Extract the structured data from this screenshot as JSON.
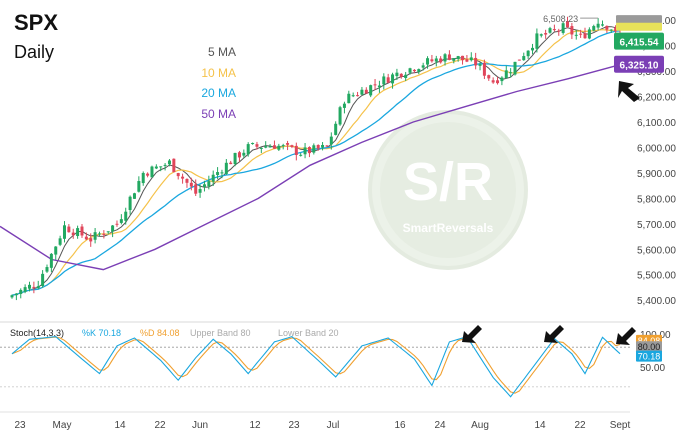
{
  "header": {
    "symbol": "SPX",
    "timeframe": "Daily"
  },
  "legend": [
    {
      "label": "5 MA",
      "color": "#555555"
    },
    {
      "label": "10 MA",
      "color": "#f5c24a"
    },
    {
      "label": "20 MA",
      "color": "#1aa7df"
    },
    {
      "label": "50 MA",
      "color": "#7b3fb5"
    }
  ],
  "watermark": {
    "mark": "S/R",
    "text": "SmartReversals"
  },
  "colors": {
    "up": "#22a861",
    "down": "#e0455a",
    "ma5": "#555555",
    "ma10": "#f5c24a",
    "ma20": "#1aa7df",
    "ma50": "#7b3fb5",
    "stoch_k": "#1aa7df",
    "stoch_d": "#f0a030"
  },
  "price_axis": {
    "ticks": [
      "6,500.00",
      "6,400.00",
      "6,300.00",
      "6,200.00",
      "6,100.00",
      "6,000.00",
      "5,900.00",
      "5,800.00",
      "5,700.00",
      "5,600.00",
      "5,500.00",
      "5,400.00"
    ]
  },
  "price_labels": {
    "high": "6,508.23",
    "last": {
      "text": "6,415.54",
      "color": "#22a861"
    },
    "ma50": {
      "text": "6,325.10",
      "color": "#7b3fb5"
    }
  },
  "x_axis": {
    "labels": [
      "23",
      "May",
      "14",
      "22",
      "Jun",
      "12",
      "23",
      "Jul",
      "16",
      "24",
      "Aug",
      "14",
      "22",
      "Sept"
    ]
  },
  "stoch": {
    "title": "Stoch(14,3,3)",
    "k_label": "%K 70.18",
    "d_label": "%D 84.08",
    "upper_band": "Upper Band 80",
    "lower_band": "Lower Band 20",
    "axis_ticks": [
      "100.00",
      "50.00"
    ],
    "value_tags": [
      {
        "text": "84.08",
        "color": "#f0a030"
      },
      {
        "text": "80.00",
        "color": "#9a9a9a"
      },
      {
        "text": "70.18",
        "color": "#1aa7df"
      }
    ]
  },
  "chart_data": [
    {
      "type": "candlestick",
      "title": "SPX Daily",
      "series": [
        {
          "name": "5 MA"
        },
        {
          "name": "10 MA"
        },
        {
          "name": "20 MA"
        },
        {
          "name": "50 MA"
        }
      ],
      "ylim": [
        5330,
        6540
      ],
      "x_labels": [
        "23",
        "May",
        "14",
        "22",
        "Jun",
        "12",
        "23",
        "Jul",
        "16",
        "24",
        "Aug",
        "14",
        "22",
        "Sept"
      ],
      "close_approx": [
        5470,
        5560,
        5660,
        5680,
        5720,
        5790,
        5900,
        5950,
        5930,
        5970,
        6000,
        6030,
        6000,
        5990,
        6090,
        6180,
        6230,
        6270,
        6280,
        6320,
        6360,
        6390,
        6330,
        6280,
        6380,
        6430,
        6460,
        6490,
        6410,
        6415
      ],
      "ma50_approx": [
        5690,
        5560,
        5520,
        5600,
        5700,
        5800,
        5930,
        6020,
        6100,
        6160,
        6220,
        6270,
        6325
      ],
      "last_close": 6415.54,
      "high": 6508.23,
      "ma50_last": 6325.1
    },
    {
      "type": "line",
      "title": "Stoch(14,3,3)",
      "series": [
        {
          "name": "%K",
          "last": 70.18
        },
        {
          "name": "%D",
          "last": 84.08
        }
      ],
      "ylim": [
        0,
        100
      ],
      "bands": [
        80,
        20
      ]
    }
  ]
}
